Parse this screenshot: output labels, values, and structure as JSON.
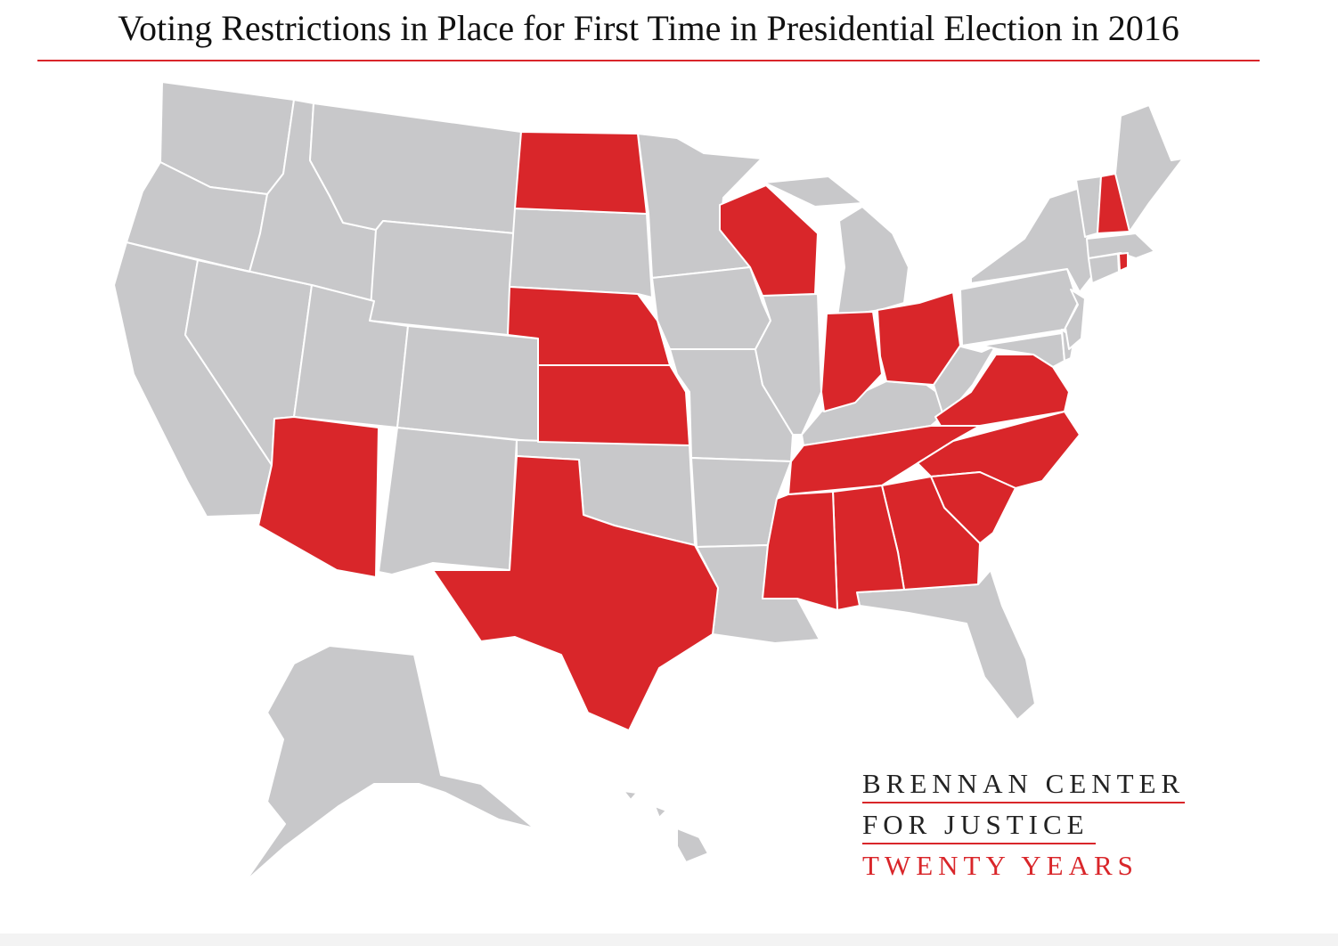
{
  "title": "Voting Restrictions in Place for First Time in Presidential Election in 2016",
  "colors": {
    "restricted": "#d9262a",
    "other": "#c8c8ca",
    "border": "#ffffff",
    "title_rule": "#d9262a"
  },
  "map": {
    "states_with_new_restrictions": [
      "North Dakota",
      "Wisconsin",
      "Nebraska",
      "Kansas",
      "Arizona",
      "Texas",
      "Indiana",
      "Ohio",
      "Virginia",
      "Tennessee",
      "North Carolina",
      "South Carolina",
      "Mississippi",
      "Alabama",
      "Georgia",
      "New Hampshire",
      "Rhode Island"
    ]
  },
  "branding": {
    "line1": "BRENNAN CENTER",
    "line2": "FOR JUSTICE",
    "line3": "TWENTY YEARS"
  }
}
